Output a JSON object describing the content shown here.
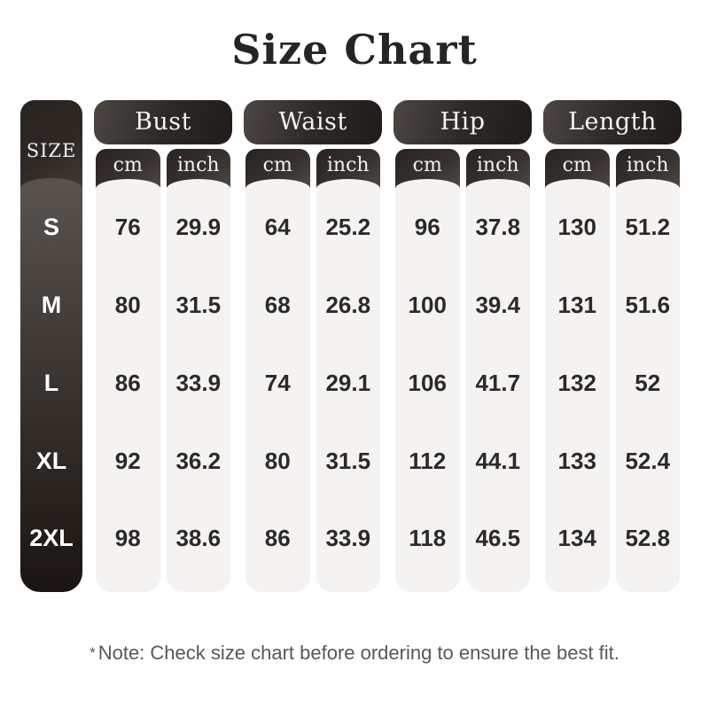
{
  "title": "Size Chart",
  "note": {
    "star": "*",
    "text": "Note: Check size chart before ordering to ensure the best fit."
  },
  "table": {
    "size_header": "SIZE",
    "sizes": [
      "S",
      "M",
      "L",
      "XL",
      "2XL"
    ],
    "units": [
      "cm",
      "inch"
    ],
    "groups": [
      {
        "label": "Bust",
        "values": [
          [
            "76",
            "80",
            "86",
            "92",
            "98"
          ],
          [
            "29.9",
            "31.5",
            "33.9",
            "36.2",
            "38.6"
          ]
        ]
      },
      {
        "label": "Waist",
        "values": [
          [
            "64",
            "68",
            "74",
            "80",
            "86"
          ],
          [
            "25.2",
            "26.8",
            "29.1",
            "31.5",
            "33.9"
          ]
        ]
      },
      {
        "label": "Hip",
        "values": [
          [
            "96",
            "100",
            "106",
            "112",
            "118"
          ],
          [
            "37.8",
            "39.4",
            "41.7",
            "44.1",
            "46.5"
          ]
        ]
      },
      {
        "label": "Length",
        "values": [
          [
            "130",
            "131",
            "132",
            "133",
            "134"
          ],
          [
            "51.2",
            "51.6",
            "52",
            "52.4",
            "52.8"
          ]
        ]
      }
    ]
  },
  "colors": {
    "page_bg": "#ffffff",
    "dark_header_light_end": "#4d4744",
    "dark_header_dark_end": "#201b19",
    "size_body_top": "#58524e",
    "size_body_bottom": "#1b1512",
    "light_column_bg": "#f5f3f1",
    "value_text": "#2b2a29",
    "header_text": "#f6f2ef",
    "title_text": "#272424",
    "note_text": "#5a5856"
  },
  "chart_data": {
    "type": "table",
    "title": "Size Chart",
    "columns": [
      "SIZE",
      "Bust cm",
      "Bust inch",
      "Waist cm",
      "Waist inch",
      "Hip cm",
      "Hip inch",
      "Length cm",
      "Length inch"
    ],
    "rows": [
      [
        "S",
        76,
        29.9,
        64,
        25.2,
        96,
        37.8,
        130,
        51.2
      ],
      [
        "M",
        80,
        31.5,
        68,
        26.8,
        100,
        39.4,
        131,
        51.6
      ],
      [
        "L",
        86,
        33.9,
        74,
        29.1,
        106,
        41.7,
        132,
        52
      ],
      [
        "XL",
        92,
        36.2,
        80,
        31.5,
        112,
        44.1,
        133,
        52.4
      ],
      [
        "2XL",
        98,
        38.6,
        86,
        33.9,
        118,
        46.5,
        134,
        52.8
      ]
    ],
    "note": "* Note: Check size chart before ordering to ensure the best fit."
  }
}
